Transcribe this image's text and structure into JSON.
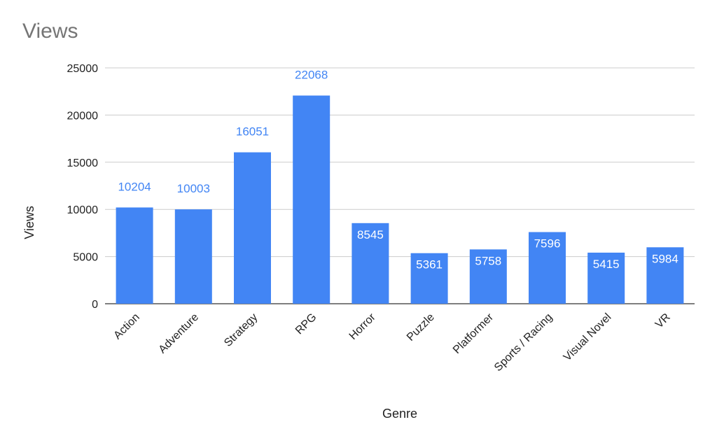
{
  "chart_data": {
    "type": "bar",
    "title": "Views",
    "xlabel": "Genre",
    "ylabel": "Views",
    "categories": [
      "Action",
      "Adventure",
      "Strategy",
      "RPG",
      "Horror",
      "Puzzle",
      "Platformer",
      "Sports / Racing",
      "Visual Novel",
      "VR"
    ],
    "values": [
      10204,
      10003,
      16051,
      22068,
      8545,
      5361,
      5758,
      7596,
      5415,
      5984
    ],
    "ylim": [
      0,
      25000
    ],
    "yticks": [
      0,
      5000,
      10000,
      15000,
      20000,
      25000
    ],
    "grid": true,
    "legend": "none",
    "colors": {
      "bar": "#4285f4",
      "label_outside": "#4285f4",
      "label_inside": "#ffffff",
      "grid": "#cccccc",
      "axis": "#333333"
    }
  }
}
